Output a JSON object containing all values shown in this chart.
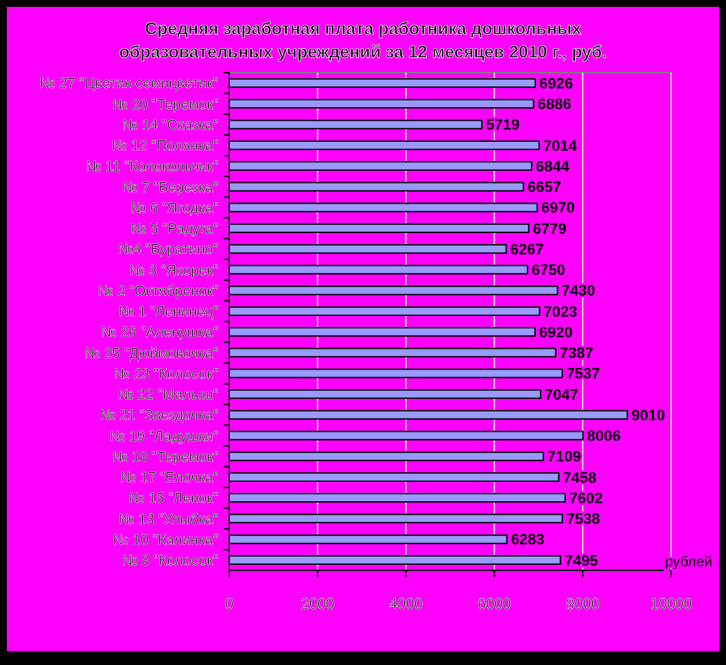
{
  "chart_data": {
    "type": "bar",
    "orientation": "horizontal",
    "title": "Средняя заработная плата работника дошкольных образовательных учреждений за 12 месяцев 2010 г., руб.",
    "xlabel": "рублей",
    "categories": [
      "№ 27 \"Цветик-семицветик\"",
      "№ 20 \"Теремок\"",
      "№ 14 \"Сказка\"",
      "№ 12 \"Полянка\"",
      "№ 11 \"Колокольчик\"",
      "№ 7 \"Березка\"",
      "№ 6 \"Ягодка\"",
      "№ 5 \"Радуга\"",
      "№4 \"Буратино\"",
      "№ 3 \"Якорек\"",
      "№ 2 \"Октябренок\"",
      "№ 1 \"Ленинец\"",
      "№ 26 \"Аленушка\"",
      "№ 25 \"Дюймовочка\"",
      "№ 23 \"Колосок\"",
      "№ 22 \"Малыш\"",
      "№ 21 \"Звездочка\"",
      "№ 19 \"Ладушки\"",
      "№ 18 \"Теремок\"",
      "№ 17 \"Елочка\"",
      "№ 15 \"Ленок\"",
      "№ 13 \"Улыбка\"",
      "№ 10 \"Калинка\"",
      "№ 8 \"Колосок\""
    ],
    "values": [
      6926,
      6886,
      5719,
      7014,
      6844,
      6657,
      6970,
      6779,
      6267,
      6750,
      7430,
      7023,
      6920,
      7387,
      7537,
      7047,
      9010,
      8006,
      7109,
      7458,
      7602,
      7538,
      6283,
      7495
    ],
    "color": "#9999ff",
    "xlim": [
      0,
      10000
    ],
    "xticks": [
      0,
      2000,
      4000,
      6000,
      8000,
      10000
    ],
    "grid": "x",
    "data_labels": true
  }
}
